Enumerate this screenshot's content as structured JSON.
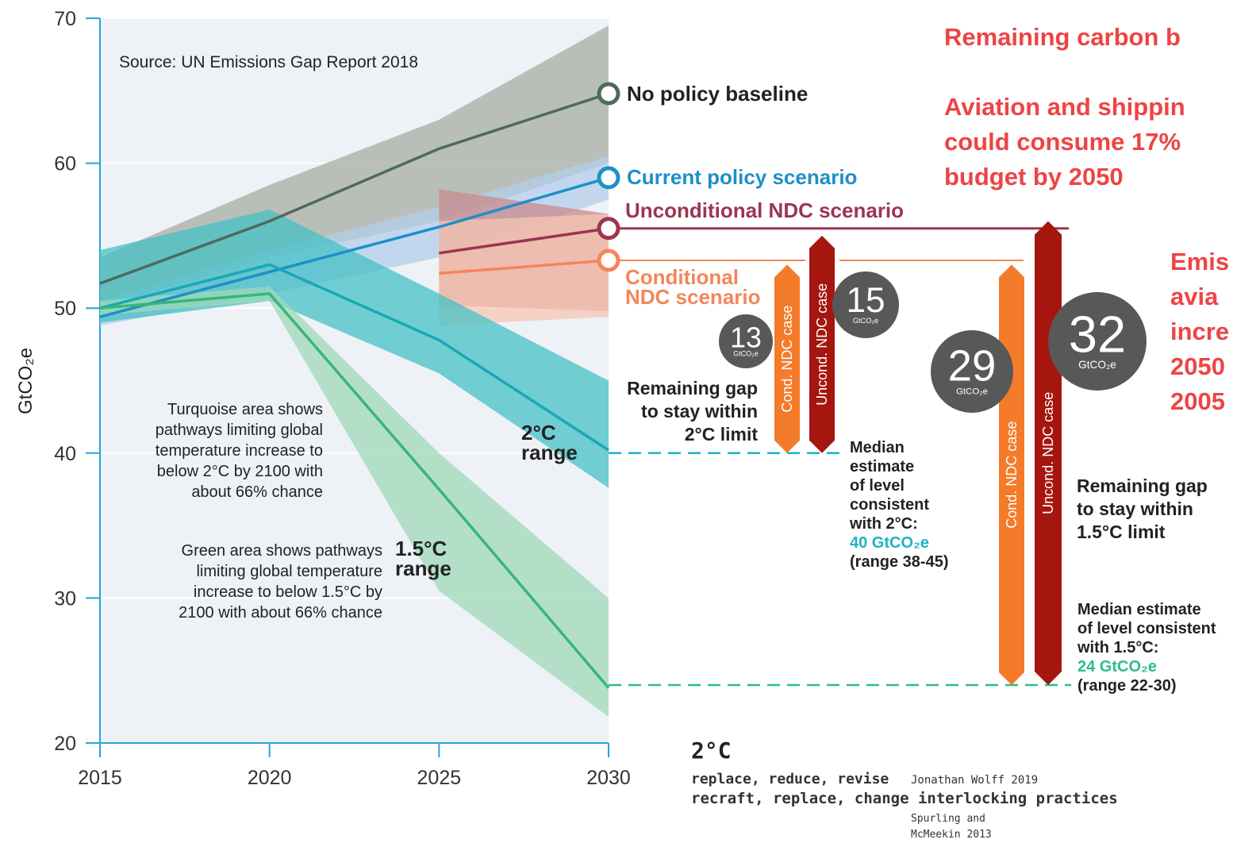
{
  "chart_data": {
    "type": "line",
    "source": "Source: UN Emissions Gap Report 2018",
    "y_label": "GtCO₂e",
    "x": [
      2015,
      2020,
      2025,
      2030
    ],
    "xlim": [
      2015,
      2030
    ],
    "xticks": [
      2015,
      2020,
      2025,
      2030
    ],
    "ylim": [
      20,
      70
    ],
    "yticks": [
      20,
      30,
      40,
      50,
      60,
      70
    ],
    "series": [
      {
        "name": "No policy baseline",
        "color": "#4e6a5e",
        "band_color": "#a7ada3",
        "values": [
          51.7,
          56,
          61,
          64.8
        ],
        "band_upper": [
          53.5,
          58.5,
          63,
          69.5
        ],
        "band_lower": [
          50,
          53.5,
          56,
          60
        ]
      },
      {
        "name": "Current policy scenario",
        "color": "#1e8fc8",
        "band_color": "#b3cdea",
        "values": [
          49.4,
          52.5,
          55.6,
          59
        ],
        "band_upper": [
          50.5,
          54,
          57,
          60.5
        ],
        "band_lower": [
          48.8,
          51,
          53.5,
          57.5
        ]
      },
      {
        "name": "Unconditional NDC scenario",
        "color": "#9c3550",
        "band_color": "#c98a8c",
        "values": [
          null,
          null,
          53.8,
          55.5
        ],
        "band_upper": [
          null,
          null,
          58.2,
          56.5
        ],
        "band_lower": [
          null,
          null,
          50.2,
          49.8
        ]
      },
      {
        "name": "Conditional NDC scenario",
        "color": "#f4865a",
        "band_color": "#f6c6b3",
        "values": [
          null,
          null,
          52.4,
          53.3
        ],
        "band_upper": [
          null,
          null,
          56,
          56.5
        ],
        "band_lower": [
          null,
          null,
          48.8,
          49.4
        ]
      },
      {
        "name": "2°C range",
        "color": "#18a8b5",
        "band_color": "#45c0c4",
        "values": [
          50,
          53,
          47.8,
          40.2
        ],
        "band_upper": [
          54,
          56.8,
          51,
          45
        ],
        "band_lower": [
          49,
          50.5,
          45.5,
          37.6
        ]
      },
      {
        "name": "1.5°C range",
        "color": "#38b57c",
        "band_color": "#9fd8b8",
        "values": [
          50,
          51,
          37.5,
          23.8
        ],
        "band_upper": [
          50.5,
          51.5,
          40,
          30
        ],
        "band_lower": [
          49.5,
          50.5,
          30.5,
          21.8
        ]
      }
    ],
    "gap_unit": "GtCO₂e",
    "gaps": [
      {
        "name": "Cond. NDC case",
        "value": 13,
        "base": 40,
        "color": "#f47b2a"
      },
      {
        "name": "Uncond. NDC case",
        "value": 15,
        "base": 40,
        "color": "#a5160e"
      },
      {
        "name": "Cond. NDC case",
        "value": 29,
        "base": 24,
        "color": "#f47b2a"
      },
      {
        "name": "Uncond. NDC case",
        "value": 32,
        "base": 24,
        "color": "#a5160e"
      }
    ],
    "medians": [
      {
        "value": 40,
        "label": "40 GtCO₂e",
        "range": "(range 38-45)",
        "color": "#1cb4c4"
      },
      {
        "value": 24,
        "label": "24 GtCO₂e",
        "range": "(range 22-30)",
        "color": "#2bbf86"
      }
    ],
    "notes": [
      {
        "lines": [
          "Turquoise area shows",
          "pathways limiting global",
          "temperature increase to",
          "below 2°C by 2100 with",
          "about 66% chance"
        ]
      },
      {
        "lines": [
          "Green area shows pathways",
          "limiting global temperature",
          "increase to below 1.5°C by",
          "2100 with about 66% chance"
        ]
      },
      {
        "lines": [
          "Remaining gap",
          "to stay within",
          "2°C limit"
        ]
      },
      {
        "lines": [
          "Median",
          "estimate",
          "of level",
          "consistent",
          "with 2°C:"
        ]
      },
      {
        "lines": [
          "Remaining gap",
          "to stay within",
          "1.5°C limit"
        ]
      },
      {
        "lines": [
          "Median estimate",
          "of level consistent",
          "with 1.5°C:"
        ]
      },
      {
        "lines": [
          "Remaining carbon b"
        ]
      },
      {
        "lines": [
          "Aviation and shippin",
          "could consume 17%",
          "budget by 2050"
        ]
      },
      {
        "lines": [
          "Emis",
          "avia",
          "incre",
          "2050",
          "2005"
        ]
      },
      {
        "lines": [
          "2°C"
        ]
      },
      {
        "lines": [
          "replace, reduce, revise"
        ]
      },
      {
        "lines": [
          "Jonathan Wolff 2019"
        ]
      },
      {
        "lines": [
          "recraft, replace, change interlocking practices"
        ]
      },
      {
        "lines": [
          "Spurling and",
          "McMeekin 2013"
        ]
      }
    ]
  }
}
